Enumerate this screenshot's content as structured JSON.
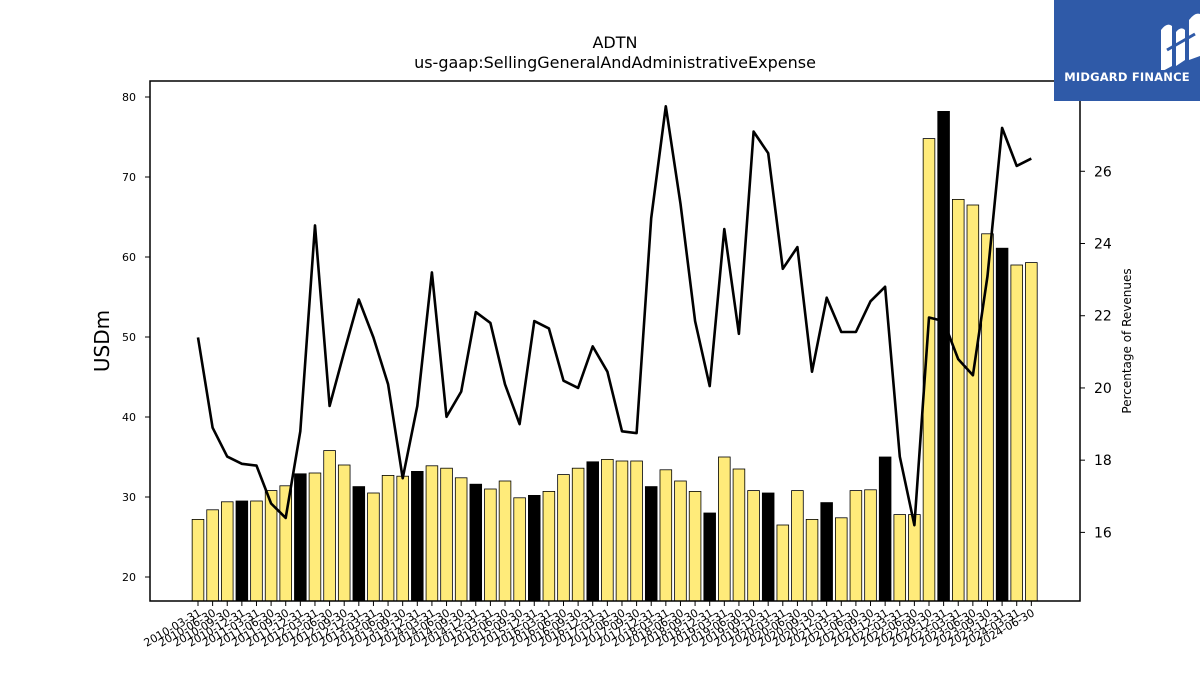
{
  "brand": {
    "name": "MIDGARD FINANCE",
    "background": "#2f5aa8",
    "icon": "midgard-m-logo-icon"
  },
  "chart_data": {
    "type": "bar",
    "title": "ADTN",
    "subtitle": "us-gaap:SellingGeneralAndAdministrativeExpense",
    "xlabel": "",
    "ylabel": "USDm",
    "y2label": "Percentage of Revenues",
    "ylim": [
      17,
      82
    ],
    "yticks": [
      20,
      30,
      40,
      50,
      60,
      70,
      80
    ],
    "y2lim": [
      14.1,
      28.5
    ],
    "y2ticks": [
      16,
      18,
      20,
      22,
      24,
      26
    ],
    "grid": false,
    "legend": "none",
    "colors": {
      "quarter_bar": "#ffeb7a",
      "year_end_bar": "#000000",
      "bar_edge": "#000000",
      "line": "#000000"
    },
    "categories": [
      "2010-03-31",
      "2010-06-30",
      "2010-09-30",
      "2010-12-31",
      "2011-03-31",
      "2011-06-30",
      "2011-09-30",
      "2011-12-31",
      "2012-03-31",
      "2012-06-30",
      "2012-09-30",
      "2012-12-31",
      "2013-03-31",
      "2013-06-30",
      "2013-09-30",
      "2013-12-31",
      "2014-03-31",
      "2014-06-30",
      "2014-09-30",
      "2014-12-31",
      "2015-03-31",
      "2015-06-30",
      "2015-09-30",
      "2015-12-31",
      "2016-03-31",
      "2016-06-30",
      "2016-09-30",
      "2016-12-31",
      "2017-03-31",
      "2017-06-30",
      "2017-09-30",
      "2017-12-31",
      "2018-03-31",
      "2018-06-30",
      "2018-09-30",
      "2018-12-31",
      "2019-03-31",
      "2019-06-30",
      "2019-09-30",
      "2019-12-31",
      "2020-03-31",
      "2020-06-30",
      "2020-09-30",
      "2020-12-31",
      "2021-03-31",
      "2021-06-30",
      "2021-09-30",
      "2021-12-31",
      "2022-03-31",
      "2022-06-30",
      "2022-09-30",
      "2022-12-31",
      "2023-03-31",
      "2023-06-30",
      "2023-09-30",
      "2023-12-31",
      "2024-03-31",
      "2024-06-30"
    ],
    "series": [
      {
        "kind": "bar",
        "axis": "left",
        "values": [
          27.2,
          28.4,
          29.4,
          29.5,
          29.5,
          30.8,
          31.4,
          32.9,
          33.0,
          35.8,
          34.0,
          31.3,
          30.5,
          32.7,
          32.6,
          33.2,
          33.9,
          33.6,
          32.4,
          31.6,
          31.0,
          32.0,
          29.9,
          30.2,
          30.7,
          32.8,
          33.6,
          34.4,
          34.7,
          34.5,
          34.5,
          31.3,
          33.4,
          32.0,
          30.7,
          28.0,
          35.0,
          33.5,
          30.8,
          30.5,
          26.5,
          30.8,
          27.2,
          29.3,
          27.4,
          30.8,
          30.9,
          35.0,
          27.8,
          27.8,
          74.8,
          78.2,
          67.2,
          66.5,
          62.9,
          61.1,
          59.0,
          59.3
        ],
        "year_end": [
          false,
          false,
          false,
          true,
          false,
          false,
          false,
          true,
          false,
          false,
          false,
          true,
          false,
          false,
          false,
          true,
          false,
          false,
          false,
          true,
          false,
          false,
          false,
          true,
          false,
          false,
          false,
          true,
          false,
          false,
          false,
          true,
          false,
          false,
          false,
          true,
          false,
          false,
          false,
          true,
          false,
          false,
          false,
          true,
          false,
          false,
          false,
          true,
          false,
          false,
          false,
          true,
          false,
          false,
          false,
          true,
          false,
          false
        ]
      },
      {
        "kind": "line",
        "axis": "right",
        "values": [
          21.4,
          18.9,
          18.1,
          17.9,
          17.85,
          16.8,
          16.4,
          18.8,
          24.5,
          19.5,
          21.0,
          22.45,
          21.4,
          20.1,
          17.5,
          19.5,
          23.2,
          19.2,
          19.9,
          22.1,
          21.8,
          20.1,
          19.0,
          21.85,
          21.65,
          20.2,
          20.0,
          21.15,
          20.45,
          18.8,
          18.75,
          24.7,
          27.8,
          25.1,
          21.85,
          20.05,
          24.4,
          21.5,
          27.1,
          26.5,
          23.3,
          23.9,
          20.45,
          22.5,
          21.55,
          21.55,
          22.4,
          22.8,
          18.1,
          16.2,
          21.95,
          21.85,
          20.8,
          20.35,
          23.1,
          27.2,
          26.15,
          26.35
        ]
      }
    ]
  }
}
